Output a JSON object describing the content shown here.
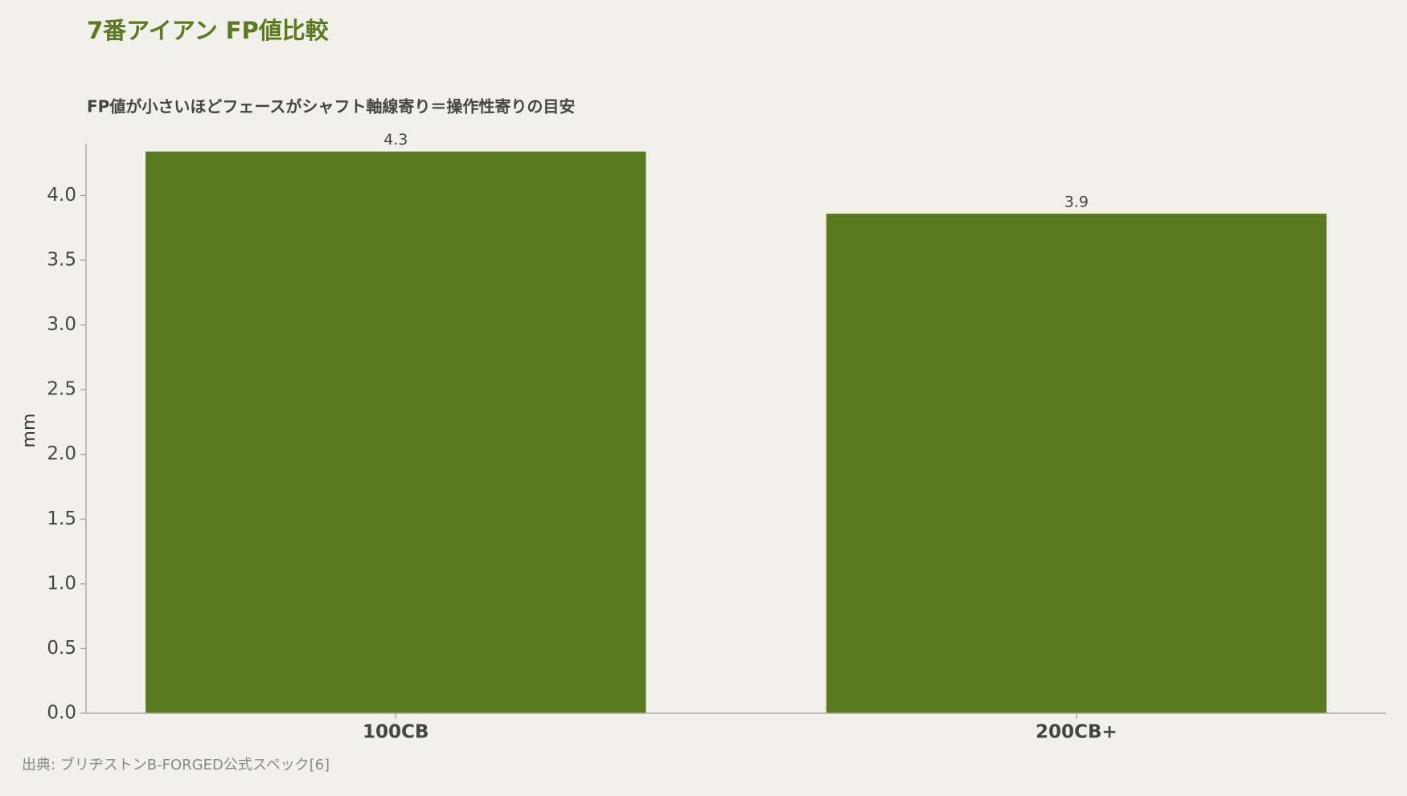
{
  "chart_data": {
    "type": "bar",
    "title": "7番アイアン FP値比較",
    "subtitle": "FP値が小さいほどフェースがシャフト軸線寄り＝操作性寄りの目安",
    "y_label": "mm",
    "source": "出典: ブリヂストンB-FORGED公式スペック[6]",
    "categories": [
      "100CB",
      "200CB+"
    ],
    "values": [
      4.34,
      3.86
    ],
    "value_labels": [
      "4.3",
      "3.9"
    ],
    "color": "#5b7a20",
    "ylim": [
      0,
      4.4
    ],
    "yticks": [
      {
        "value": 0,
        "label": "0.0"
      },
      0.5,
      {
        "value": 1,
        "label": "1.0"
      },
      1.5,
      {
        "value": 2,
        "label": "2.0"
      },
      2.5,
      {
        "value": 3,
        "label": "3.0"
      },
      3.5,
      {
        "value": 4,
        "label": "4.0"
      }
    ],
    "grid": false
  }
}
